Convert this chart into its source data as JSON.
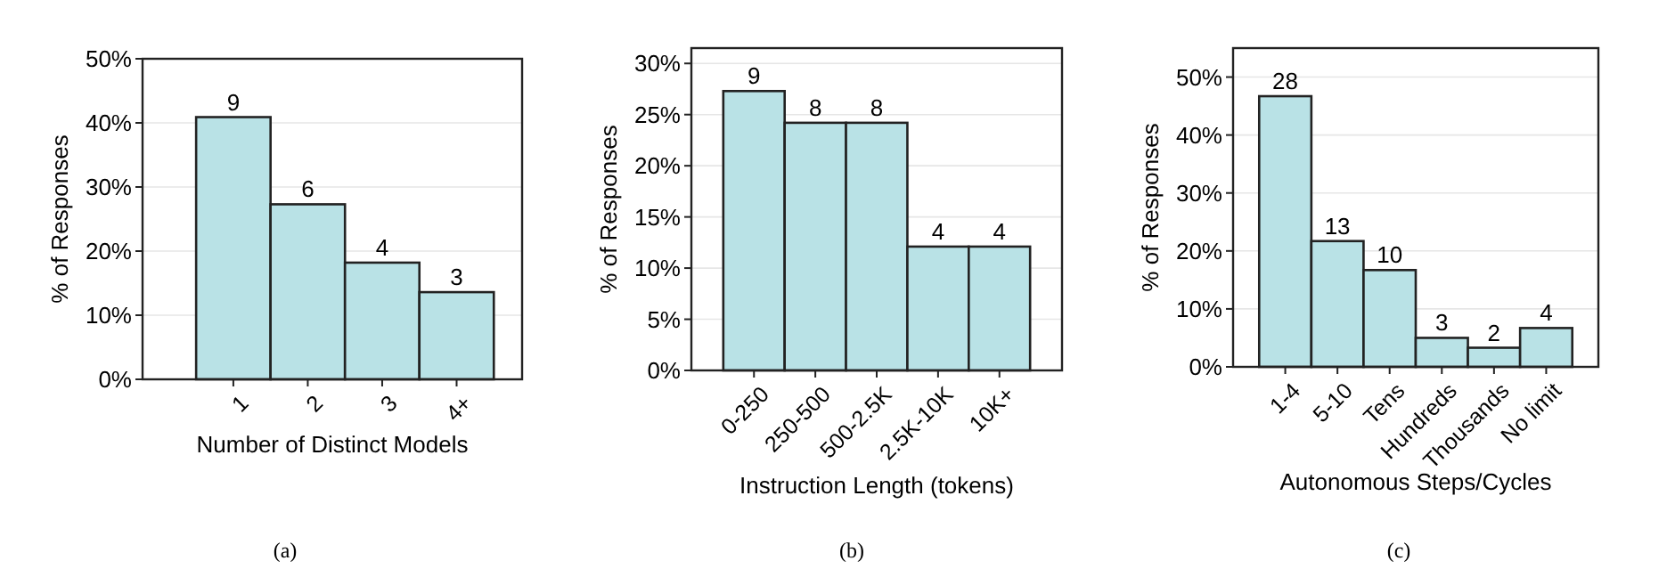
{
  "chart_data": [
    {
      "type": "bar",
      "categories": [
        "1",
        "2",
        "3",
        "4+"
      ],
      "values": [
        40.9,
        27.3,
        18.2,
        13.6
      ],
      "color": "#b9e2e6",
      "xlabel": "Number of Distinct Models",
      "ylabel": "% of Responses",
      "ylim": [
        0,
        50
      ],
      "yticks": [
        {
          "value": 0,
          "label": "0%"
        },
        {
          "value": 10,
          "label": "10%"
        },
        {
          "value": 20,
          "label": "20%"
        },
        {
          "value": 30,
          "label": "30%"
        },
        {
          "value": 40,
          "label": "40%"
        },
        {
          "value": 50,
          "label": "50%"
        }
      ],
      "grid": "y",
      "annotations": [
        {
          "text": "9",
          "x": "1",
          "y": 40.9
        },
        {
          "text": "6",
          "x": "2",
          "y": 27.3
        },
        {
          "text": "4",
          "x": "3",
          "y": 18.2
        },
        {
          "text": "3",
          "x": "4+",
          "y": 13.6
        },
        "(a)"
      ]
    },
    {
      "type": "bar",
      "categories": [
        "0-250",
        "250-500",
        "500-2.5K",
        "2.5K-10K",
        "10K+"
      ],
      "values": [
        27.3,
        24.2,
        24.2,
        12.1,
        12.1
      ],
      "color": "#b9e2e6",
      "xlabel": "Instruction Length (tokens)",
      "ylabel": "% of Responses",
      "ylim": [
        0,
        31.5
      ],
      "yticks": [
        {
          "value": 0,
          "label": "0%"
        },
        {
          "value": 5,
          "label": "5%"
        },
        {
          "value": 10,
          "label": "10%"
        },
        {
          "value": 15,
          "label": "15%"
        },
        {
          "value": 20,
          "label": "20%"
        },
        {
          "value": 25,
          "label": "25%"
        },
        {
          "value": 30,
          "label": "30%"
        }
      ],
      "grid": "y",
      "annotations": [
        {
          "text": "9",
          "x": "0-250",
          "y": 27.3
        },
        {
          "text": "8",
          "x": "250-500",
          "y": 24.2
        },
        {
          "text": "8",
          "x": "500-2.5K",
          "y": 24.2
        },
        {
          "text": "4",
          "x": "2.5K-10K",
          "y": 12.1
        },
        {
          "text": "4",
          "x": "10K+",
          "y": 12.1
        },
        "(b)"
      ]
    },
    {
      "type": "bar",
      "categories": [
        "1-4",
        "5-10",
        "Tens",
        "Hundreds",
        "Thousands",
        "No limit"
      ],
      "values": [
        46.7,
        21.7,
        16.7,
        5,
        3.3,
        6.7
      ],
      "color": "#b9e2e6",
      "xlabel": "Autonomous Steps/Cycles",
      "ylabel": "% of Responses",
      "ylim": [
        0,
        55
      ],
      "yticks": [
        {
          "value": 0,
          "label": "0%"
        },
        {
          "value": 10,
          "label": "10%"
        },
        {
          "value": 20,
          "label": "20%"
        },
        {
          "value": 30,
          "label": "30%"
        },
        {
          "value": 40,
          "label": "40%"
        },
        {
          "value": 50,
          "label": "50%"
        }
      ],
      "grid": "y",
      "annotations": [
        {
          "text": "28",
          "x": "1-4",
          "y": 46.7
        },
        {
          "text": "13",
          "x": "5-10",
          "y": 21.7
        },
        {
          "text": "10",
          "x": "Tens",
          "y": 16.7
        },
        {
          "text": "3",
          "x": "Hundreds",
          "y": 5
        },
        {
          "text": "2",
          "x": "Thousands",
          "y": 3.3
        },
        {
          "text": "4",
          "x": "No limit",
          "y": 6.7
        },
        "(c)"
      ]
    }
  ]
}
